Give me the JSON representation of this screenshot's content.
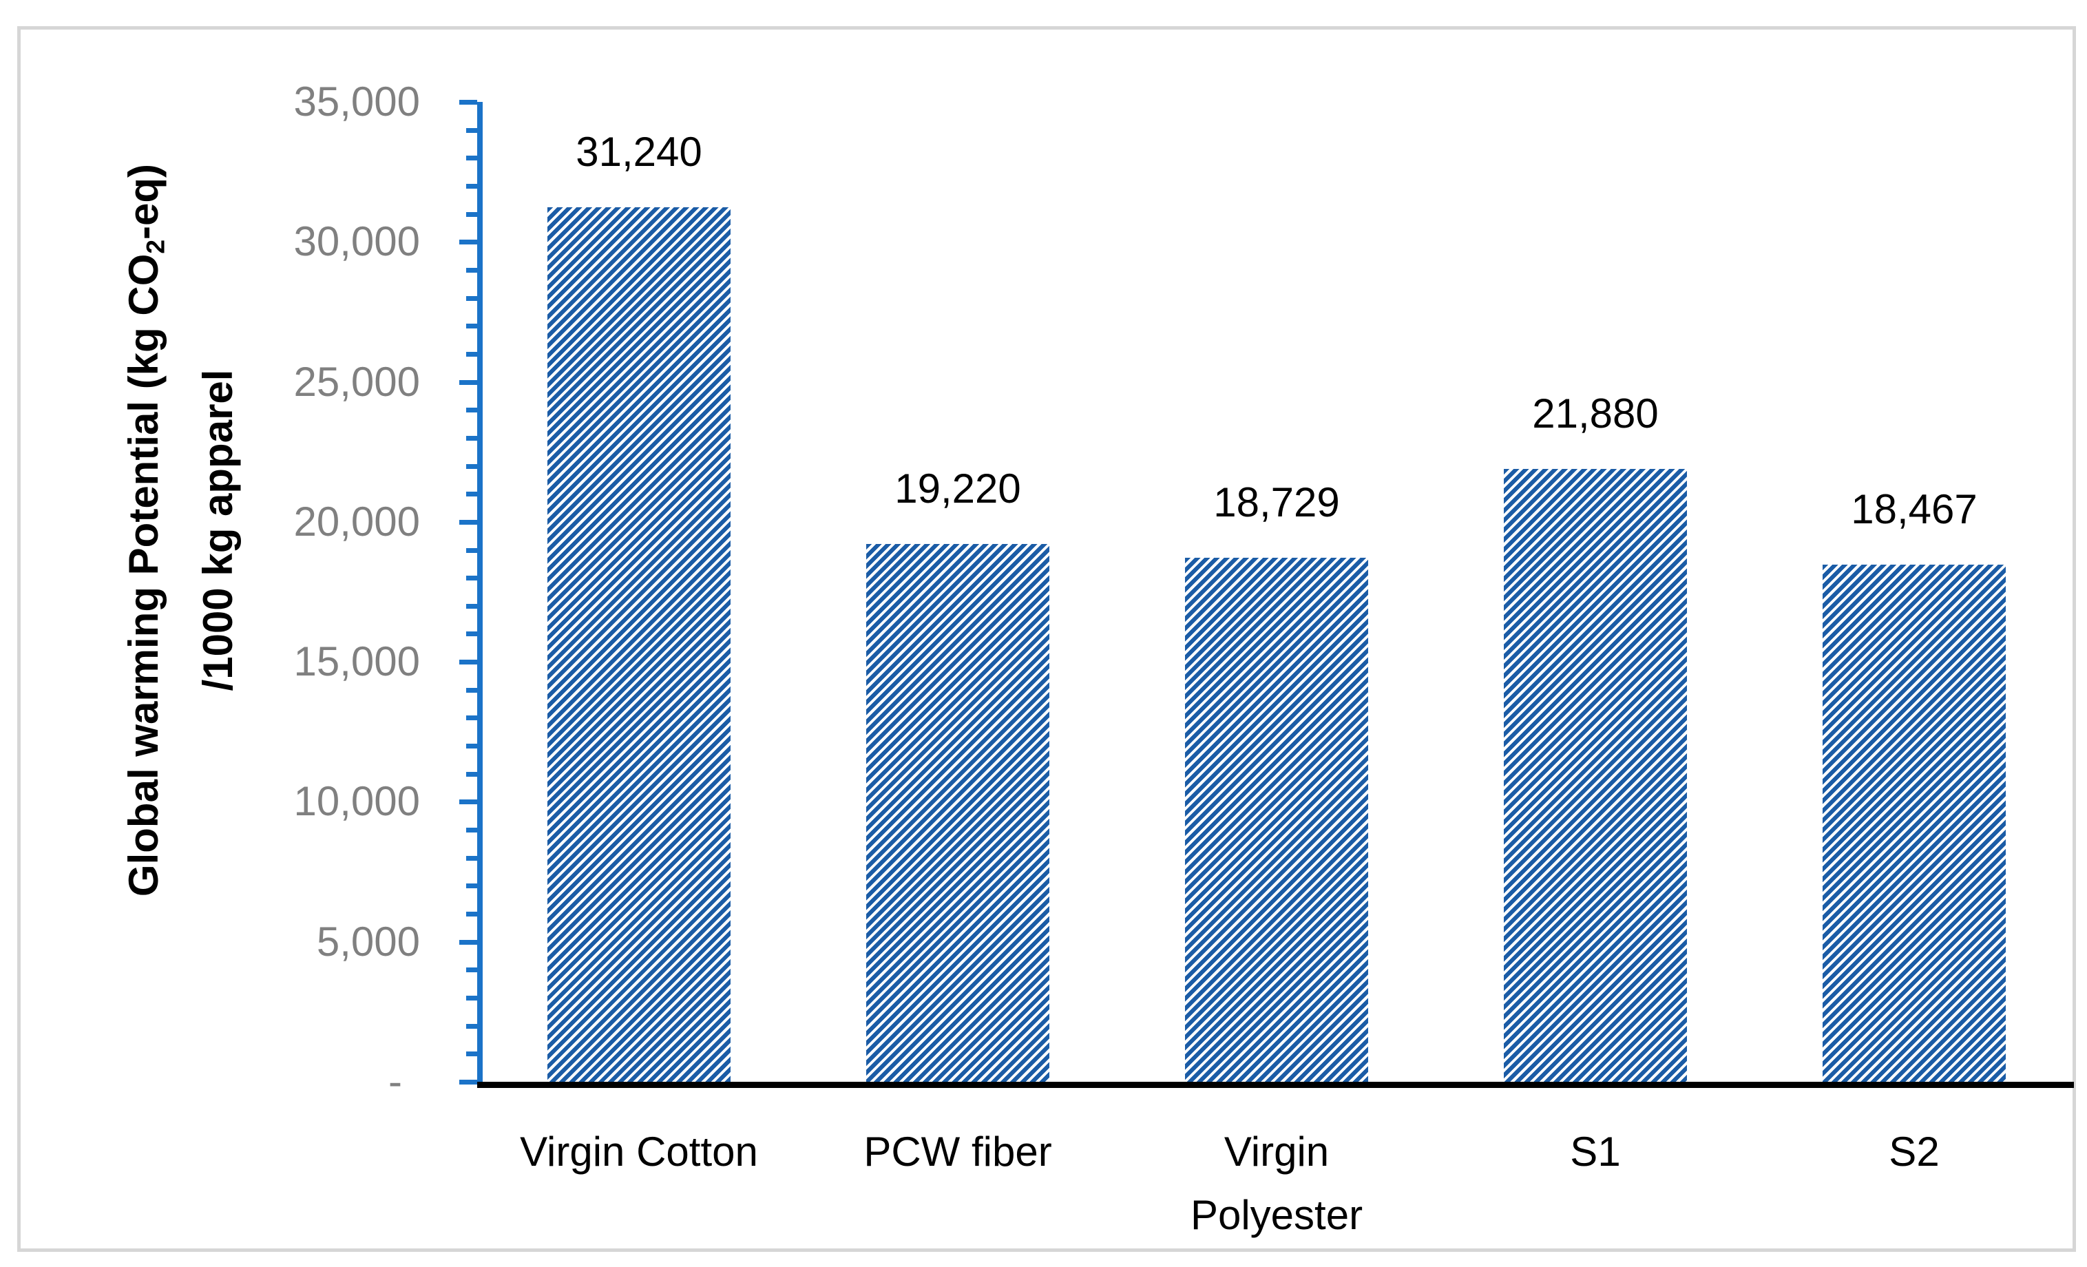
{
  "chart_data": {
    "type": "bar",
    "title": "",
    "categories": [
      "Virgin Cotton",
      "PCW fiber",
      "Virgin Polyester",
      "S1",
      "S2"
    ],
    "category_lines": [
      [
        "Virgin Cotton"
      ],
      [
        "PCW fiber"
      ],
      [
        "Virgin",
        "Polyester"
      ],
      [
        "S1"
      ],
      [
        "S2"
      ]
    ],
    "values": [
      31240,
      19220,
      18729,
      21880,
      18467
    ],
    "data_labels": [
      "31,240",
      "19,220",
      "18,729",
      "21,880",
      "18,467"
    ],
    "ylabel": {
      "line1_pre": "Global warming Potential (kg CO",
      "line1_sub": "2",
      "line1_post": "-eq)",
      "line2": "/1000 kg apparel"
    },
    "xlabel": "",
    "ylim": [
      0,
      35000
    ],
    "yticks_major": [
      {
        "value": 35000,
        "label": "35,000"
      },
      {
        "value": 30000,
        "label": "30,000"
      },
      {
        "value": 25000,
        "label": "25,000"
      },
      {
        "value": 20000,
        "label": "20,000"
      },
      {
        "value": 15000,
        "label": "15,000"
      },
      {
        "value": 10000,
        "label": "10,000"
      },
      {
        "value": 5000,
        "label": "5,000"
      },
      {
        "value": 0,
        "label": "-"
      }
    ],
    "ytick_minor_step": 1000,
    "grid": "off",
    "legend": "none",
    "bar_pattern": "diagonal-stripes-up-right"
  },
  "colors": {
    "bar_stripe_blue": "#1B5CA6",
    "bar_background": "#FFFFFF",
    "y_axis_blue": "#1B73C8",
    "x_axis_black": "#000000",
    "tick_label_gray": "#808080",
    "value_label_black": "#000000",
    "frame_border_gray": "#D6D6D6",
    "page_background": "#FFFFFF"
  }
}
